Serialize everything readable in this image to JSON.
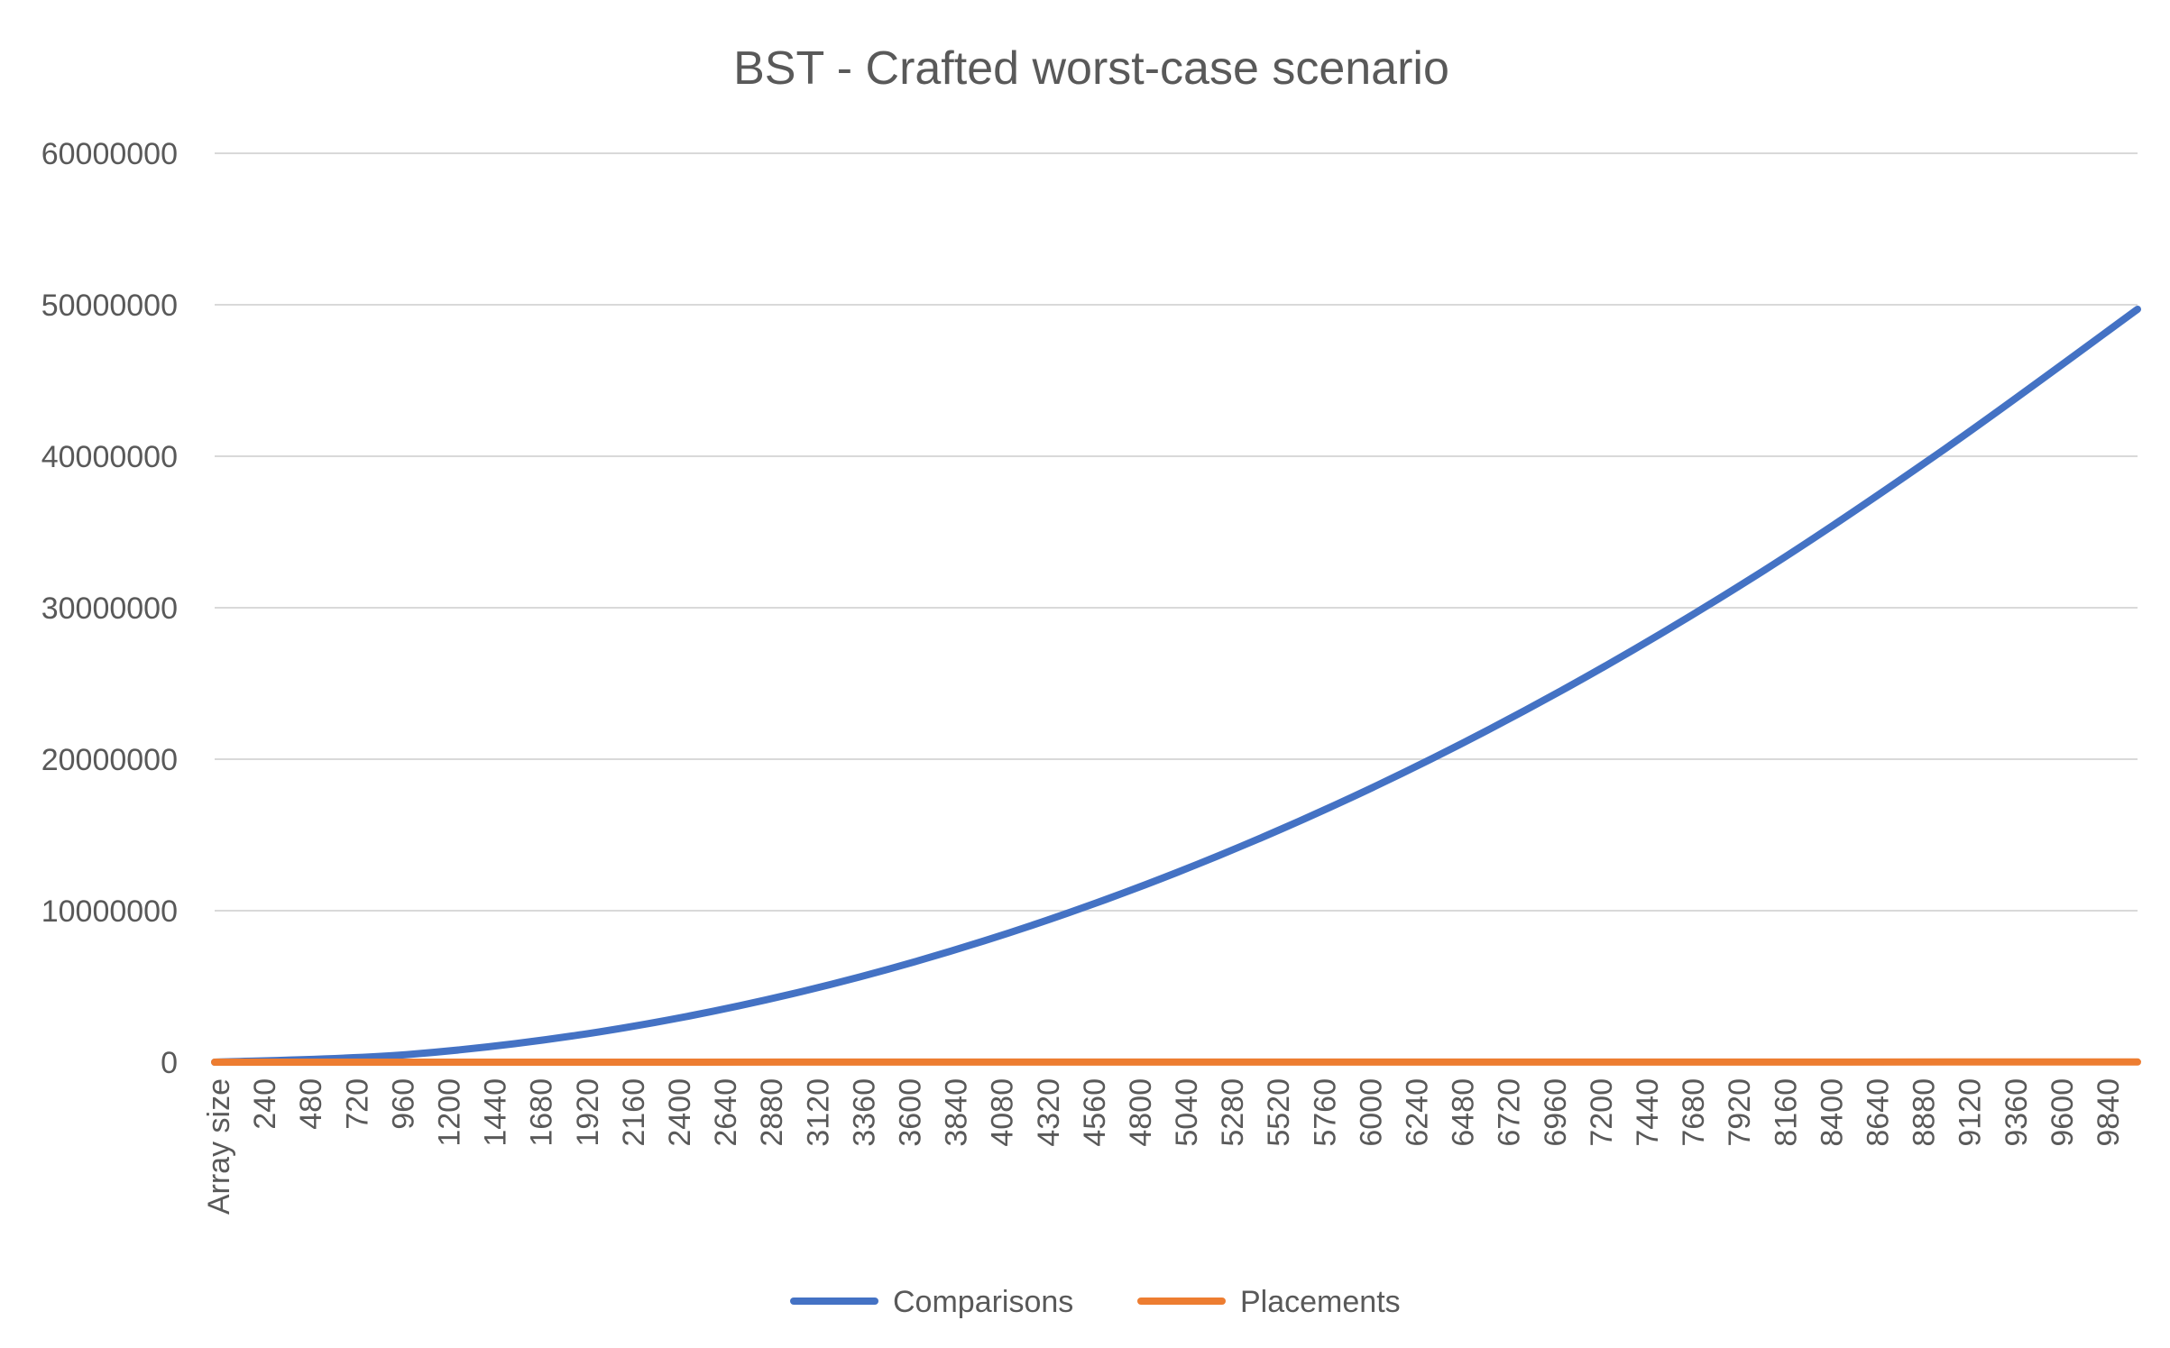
{
  "chart_data": {
    "type": "line",
    "title": "BST - Crafted worst-case scenario",
    "xlabel": "",
    "ylabel": "",
    "x_axis": {
      "first_label": "Array size",
      "tick_labels": [
        "240",
        "480",
        "720",
        "960",
        "1200",
        "1440",
        "1680",
        "1920",
        "2160",
        "2400",
        "2640",
        "2880",
        "3120",
        "3360",
        "3600",
        "3840",
        "4080",
        "4320",
        "4560",
        "4800",
        "5040",
        "5280",
        "5520",
        "5760",
        "6000",
        "6240",
        "6480",
        "6720",
        "6960",
        "7200",
        "7440",
        "7680",
        "7920",
        "8160",
        "8400",
        "8640",
        "8880",
        "9120",
        "9360",
        "9600",
        "9840"
      ],
      "range": [
        0,
        10000
      ]
    },
    "y_axis": {
      "tick_labels": [
        "0",
        "10000000",
        "20000000",
        "30000000",
        "40000000",
        "50000000",
        "60000000"
      ],
      "ylim": [
        0,
        60000000
      ]
    },
    "grid": true,
    "legend_position": "bottom",
    "series": [
      {
        "name": "Comparisons",
        "color": "#4472C4",
        "x": [
          0,
          1000,
          2000,
          3000,
          4000,
          5000,
          6000,
          7000,
          8000,
          9000,
          10000
        ],
        "values": [
          0,
          500000,
          2000000,
          4500000,
          8000000,
          12500000,
          18000000,
          24500000,
          32000000,
          40500000,
          49700000
        ]
      },
      {
        "name": "Placements",
        "color": "#ED7D31",
        "x": [
          0,
          1000,
          2000,
          3000,
          4000,
          5000,
          6000,
          7000,
          8000,
          9000,
          10000
        ],
        "values": [
          0,
          1000,
          2000,
          3000,
          4000,
          5000,
          6000,
          7000,
          8000,
          9000,
          10000
        ]
      }
    ]
  }
}
